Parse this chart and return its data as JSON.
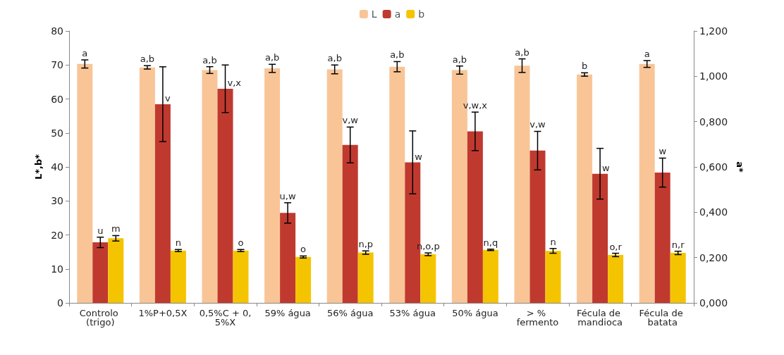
{
  "chart_data": {
    "type": "bar",
    "ylabel": "L*,b*",
    "y2label": "a*",
    "categories": [
      "Controlo (trigo)",
      "1%P+0,5X",
      "0,5%C + 0,5%X",
      "59% água",
      "56% água",
      "53% água",
      "50% água",
      "> % fermento",
      "Fécula de mandioca",
      "Fécula de batata"
    ],
    "series": [
      {
        "name": "L",
        "color": "#f9c597",
        "values": [
          70.3,
          69.3,
          68.5,
          69,
          68.7,
          69.5,
          68.5,
          69.8,
          67.2,
          70.3
        ],
        "errors": [
          1.2,
          0.5,
          1,
          1.2,
          1.3,
          1.5,
          1.2,
          2,
          0.5,
          1
        ],
        "value_labels": [
          "a",
          "a,b",
          "a,b",
          "a,b",
          "a,b",
          "a,b",
          "a,b",
          "a,b",
          "b",
          "a"
        ]
      },
      {
        "name": "a",
        "color": "#c0392f",
        "axis": "y2",
        "values": [
          0.267,
          0.877,
          0.945,
          0.397,
          0.697,
          0.62,
          0.757,
          0.672,
          0.57,
          0.575
        ],
        "errors": [
          0.023,
          0.165,
          0.105,
          0.045,
          0.079,
          0.139,
          0.085,
          0.085,
          0.112,
          0.064
        ],
        "value_labels": [
          "u",
          "v",
          "v,x",
          "u,w",
          "v,w",
          "w",
          "v,w,x",
          "v,w",
          "w",
          "w"
        ]
      },
      {
        "name": "b",
        "color": "#f5c400",
        "values": [
          19,
          15.4,
          15.4,
          13.5,
          14.8,
          14.3,
          15.6,
          15.3,
          14.1,
          14.7
        ],
        "errors": [
          0.8,
          0.3,
          0.3,
          0.3,
          0.5,
          0.4,
          0.2,
          0.7,
          0.5,
          0.5
        ],
        "value_labels": [
          "m",
          "n",
          "o",
          "o",
          "n,p",
          "n,o,p",
          "n,q",
          "n",
          "o,r",
          "n,r"
        ]
      }
    ],
    "ylim": [
      0,
      80
    ],
    "yticks": [
      0,
      10,
      20,
      30,
      40,
      50,
      60,
      70,
      80
    ],
    "y2lim": [
      0,
      1.2
    ],
    "y2ticks": [
      {
        "value": 0,
        "label": "0,000"
      },
      {
        "value": 0.2,
        "label": "0,200"
      },
      {
        "value": 0.4,
        "label": "0,400"
      },
      {
        "value": 0.6,
        "label": "0,600"
      },
      {
        "value": 0.8,
        "label": "0,800"
      },
      {
        "value": 1,
        "label": "1,000"
      },
      {
        "value": 1.2,
        "label": "1,200"
      }
    ],
    "grid": false,
    "legend": "top"
  }
}
